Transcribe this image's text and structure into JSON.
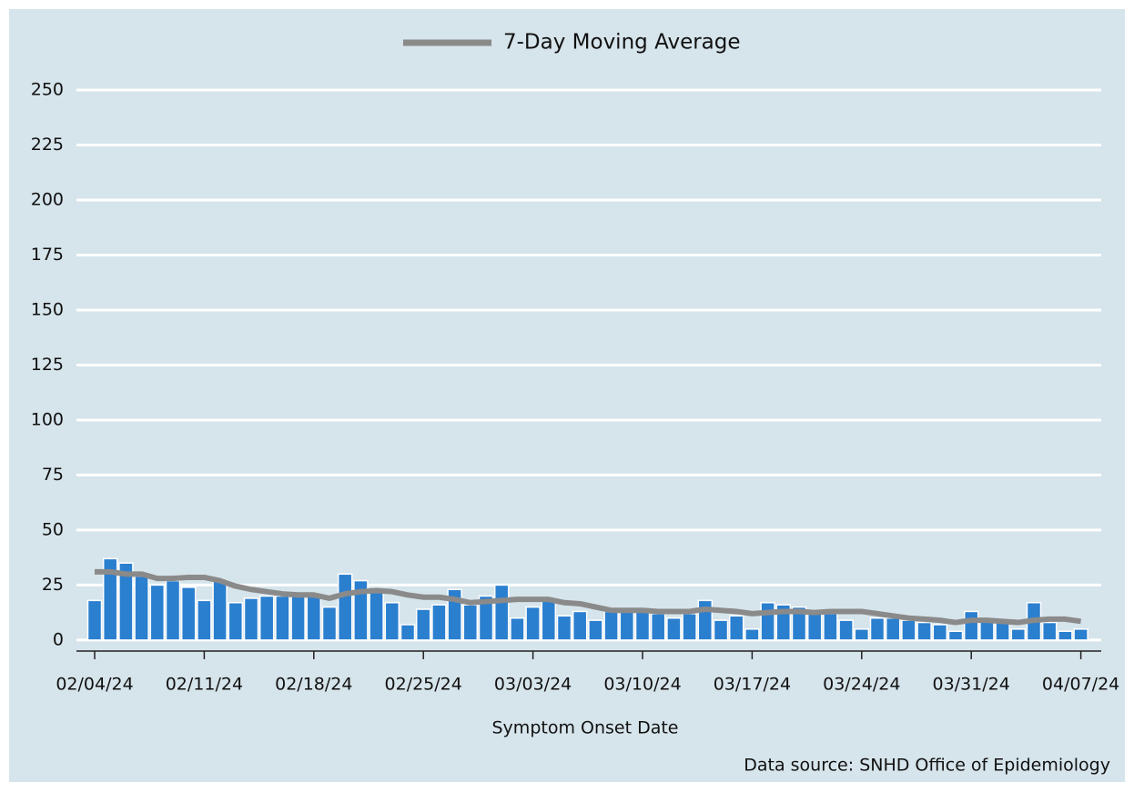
{
  "chart_data": {
    "type": "bar",
    "legend_position": "top",
    "x_label": "Symptom Onset Date",
    "source": "Data source: SNHD Office of Epidemiology",
    "categories": [
      "02/04/24",
      null,
      null,
      null,
      null,
      null,
      null,
      "02/11/24",
      null,
      null,
      null,
      null,
      null,
      null,
      "02/18/24",
      null,
      null,
      null,
      null,
      null,
      null,
      "02/25/24",
      null,
      null,
      null,
      null,
      null,
      null,
      "03/03/24",
      null,
      null,
      null,
      null,
      null,
      null,
      "03/10/24",
      null,
      null,
      null,
      null,
      null,
      null,
      "03/17/24",
      null,
      null,
      null,
      null,
      null,
      null,
      "03/24/24",
      null,
      null,
      null,
      null,
      null,
      null,
      "03/31/24",
      null,
      null,
      null,
      null,
      null,
      null,
      "04/07/24"
    ],
    "values": [
      18,
      37,
      35,
      29,
      25,
      27,
      24,
      18,
      27,
      17,
      19,
      20,
      20,
      20,
      20,
      15,
      30,
      27,
      22,
      17,
      7,
      14,
      16,
      23,
      16,
      20,
      25,
      10,
      15,
      18,
      11,
      13,
      9,
      13,
      14,
      14,
      12,
      10,
      12,
      18,
      9,
      11,
      5,
      17,
      16,
      15,
      12,
      12,
      9,
      5,
      10,
      10,
      9,
      8,
      7,
      4,
      13,
      9,
      8,
      5,
      17,
      8,
      4,
      5
    ],
    "color": "#2a7fcf",
    "series": [
      {
        "name": "7-Day Moving Average",
        "color": "#8a8a8a",
        "values": [
          31,
          31,
          30,
          30,
          28,
          28,
          28.5,
          28.5,
          27,
          24.5,
          23,
          22,
          21,
          20.5,
          20.5,
          19,
          21,
          22,
          22.5,
          22,
          20.5,
          19.5,
          19.5,
          18.5,
          17,
          17.5,
          18,
          18.5,
          18.5,
          18.5,
          17,
          16.5,
          15,
          13.5,
          13.5,
          13.5,
          13,
          13,
          13,
          14,
          13.5,
          13,
          12,
          12.5,
          13,
          13,
          12.5,
          13,
          13,
          13,
          12,
          11,
          10,
          9.5,
          9,
          8,
          9,
          9,
          8.5,
          8,
          9,
          9.5,
          9.5,
          8.5
        ]
      }
    ],
    "ylim": [
      -5,
      250
    ],
    "yticks": [
      0,
      25,
      50,
      75,
      100,
      125,
      150,
      175,
      200,
      225,
      250
    ],
    "grid": true
  }
}
